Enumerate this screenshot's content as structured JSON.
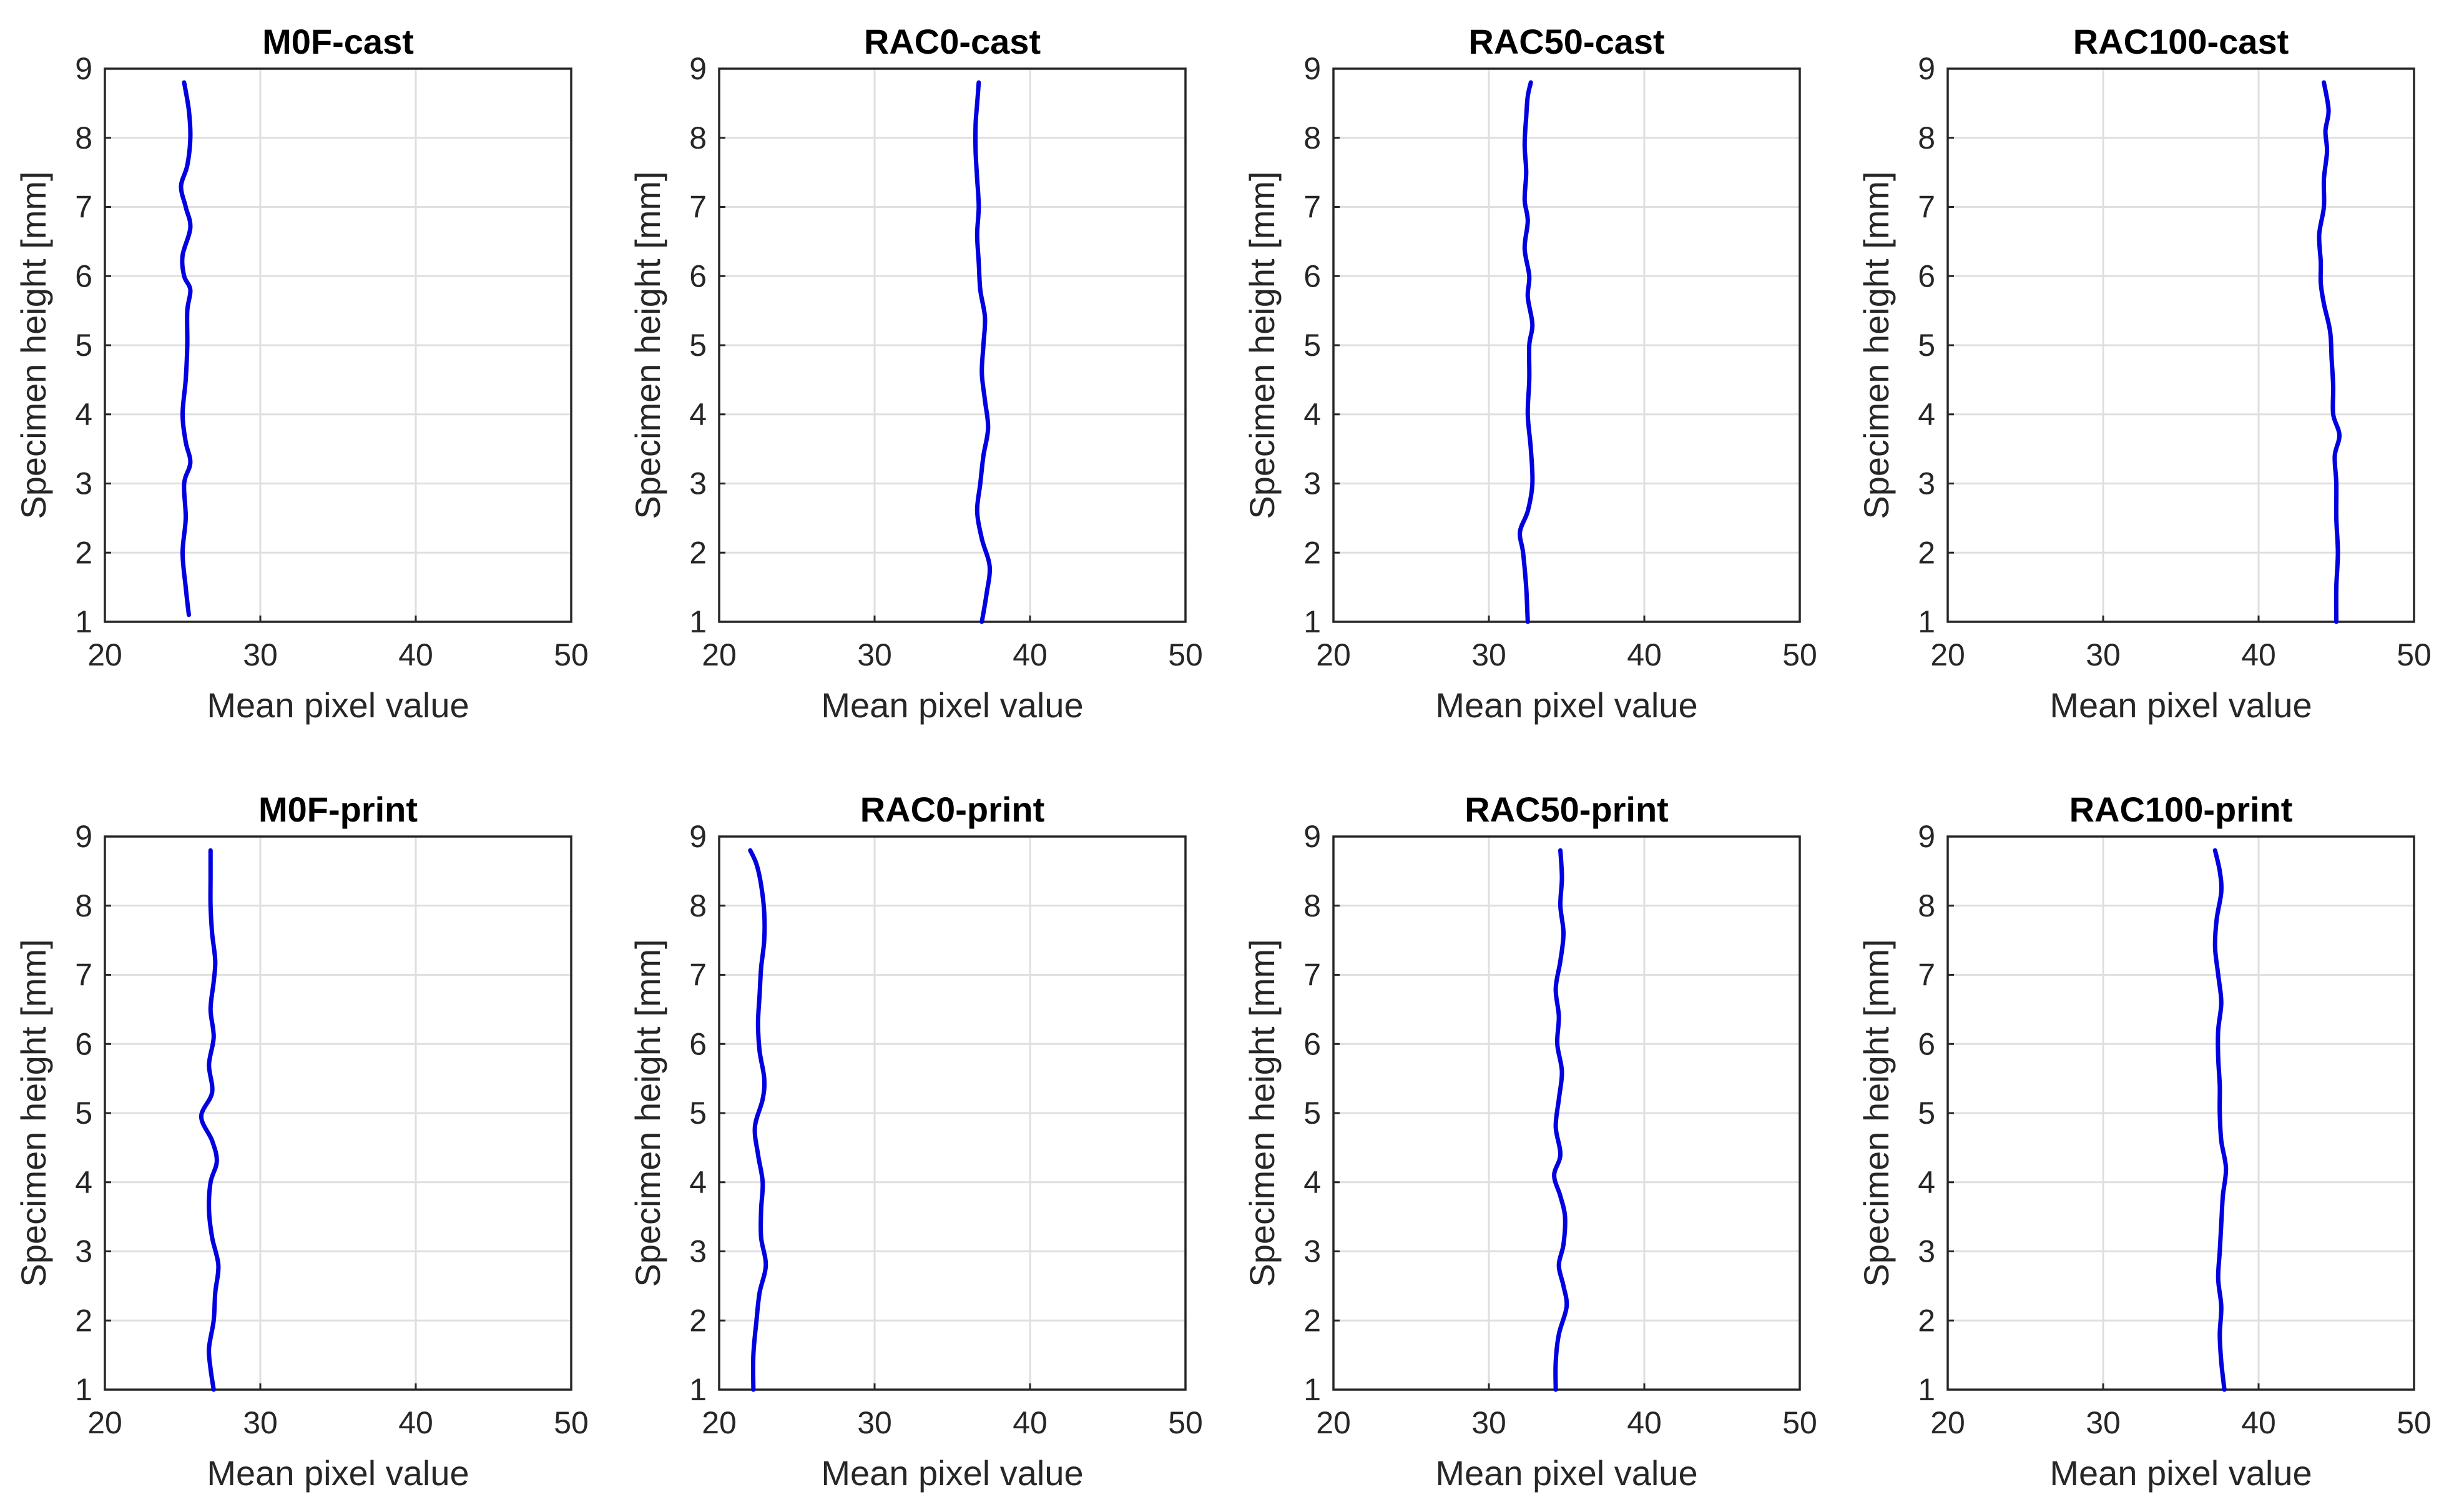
{
  "figure": {
    "background": "#ffffff",
    "line_color": "#0000e0"
  },
  "chart_data": [
    {
      "type": "line",
      "orientation": "vertical-profile",
      "title": "M0F-cast",
      "xlabel": "Mean pixel value",
      "ylabel": "Specimen height [mm]",
      "xlim": [
        20,
        50
      ],
      "ylim": [
        1,
        9
      ],
      "xticks": [
        "20",
        "30",
        "40",
        "50"
      ],
      "yticks": [
        "1",
        "2",
        "3",
        "4",
        "5",
        "6",
        "7",
        "8",
        "9"
      ],
      "grid": true,
      "series": [
        {
          "name": "M0F-cast",
          "y": [
            1.1,
            1.5,
            2.0,
            2.5,
            3.0,
            3.3,
            3.6,
            4.0,
            4.5,
            5.0,
            5.5,
            5.8,
            6.0,
            6.3,
            6.7,
            7.0,
            7.3,
            7.6,
            8.0,
            8.4,
            8.8
          ],
          "x": [
            25.4,
            25.2,
            25.0,
            25.2,
            25.1,
            25.5,
            25.2,
            25.0,
            25.2,
            25.3,
            25.3,
            25.5,
            25.1,
            25.0,
            25.5,
            25.2,
            24.9,
            25.3,
            25.5,
            25.4,
            25.1
          ]
        }
      ]
    },
    {
      "type": "line",
      "orientation": "vertical-profile",
      "title": "RAC0-cast",
      "xlabel": "Mean pixel value",
      "ylabel": "Specimen height [mm]",
      "xlim": [
        20,
        50
      ],
      "ylim": [
        1,
        9
      ],
      "xticks": [
        "20",
        "30",
        "40",
        "50"
      ],
      "yticks": [
        "1",
        "2",
        "3",
        "4",
        "5",
        "6",
        "7",
        "8",
        "9"
      ],
      "grid": true,
      "series": [
        {
          "name": "RAC0-cast",
          "y": [
            1.0,
            1.4,
            1.8,
            2.2,
            2.6,
            3.0,
            3.4,
            3.8,
            4.2,
            4.6,
            5.0,
            5.4,
            5.8,
            6.2,
            6.6,
            7.0,
            7.4,
            7.8,
            8.2,
            8.5,
            8.8
          ],
          "x": [
            36.9,
            37.2,
            37.4,
            36.9,
            36.6,
            36.8,
            37.0,
            37.3,
            37.1,
            36.9,
            37.0,
            37.1,
            36.8,
            36.7,
            36.6,
            36.7,
            36.6,
            36.5,
            36.5,
            36.6,
            36.7
          ]
        }
      ]
    },
    {
      "type": "line",
      "orientation": "vertical-profile",
      "title": "RAC50-cast",
      "xlabel": "Mean pixel value",
      "ylabel": "Specimen height [mm]",
      "xlim": [
        20,
        50
      ],
      "ylim": [
        1,
        9
      ],
      "xticks": [
        "20",
        "30",
        "40",
        "50"
      ],
      "yticks": [
        "1",
        "2",
        "3",
        "4",
        "5",
        "6",
        "7",
        "8",
        "9"
      ],
      "grid": true,
      "series": [
        {
          "name": "RAC50-cast",
          "y": [
            1.0,
            1.5,
            2.0,
            2.3,
            2.6,
            3.0,
            3.5,
            4.0,
            4.5,
            5.0,
            5.3,
            5.7,
            6.0,
            6.4,
            6.8,
            7.1,
            7.5,
            7.9,
            8.3,
            8.6,
            8.8
          ],
          "x": [
            32.5,
            32.4,
            32.2,
            32.0,
            32.5,
            32.8,
            32.7,
            32.5,
            32.6,
            32.6,
            32.8,
            32.5,
            32.6,
            32.3,
            32.5,
            32.3,
            32.4,
            32.3,
            32.4,
            32.5,
            32.7
          ]
        }
      ]
    },
    {
      "type": "line",
      "orientation": "vertical-profile",
      "title": "RAC100-cast",
      "xlabel": "Mean pixel value",
      "ylabel": "Specimen height [mm]",
      "xlim": [
        20,
        50
      ],
      "ylim": [
        1,
        9
      ],
      "xticks": [
        "20",
        "30",
        "40",
        "50"
      ],
      "yticks": [
        "1",
        "2",
        "3",
        "4",
        "5",
        "6",
        "7",
        "8",
        "9"
      ],
      "grid": true,
      "series": [
        {
          "name": "RAC100-cast",
          "y": [
            1.0,
            1.5,
            2.0,
            2.5,
            3.0,
            3.4,
            3.7,
            4.0,
            4.4,
            4.8,
            5.2,
            5.6,
            5.9,
            6.2,
            6.6,
            7.0,
            7.4,
            7.8,
            8.1,
            8.4,
            8.8
          ],
          "x": [
            45.0,
            45.0,
            45.1,
            45.0,
            45.0,
            44.9,
            45.2,
            44.8,
            44.8,
            44.7,
            44.6,
            44.2,
            44.0,
            44.0,
            43.9,
            44.2,
            44.2,
            44.4,
            44.3,
            44.5,
            44.2
          ]
        }
      ]
    },
    {
      "type": "line",
      "orientation": "vertical-profile",
      "title": "M0F-print",
      "xlabel": "Mean pixel value",
      "ylabel": "Specimen height [mm]",
      "xlim": [
        20,
        50
      ],
      "ylim": [
        1,
        9
      ],
      "xticks": [
        "20",
        "30",
        "40",
        "50"
      ],
      "yticks": [
        "1",
        "2",
        "3",
        "4",
        "5",
        "6",
        "7",
        "8",
        "9"
      ],
      "grid": true,
      "series": [
        {
          "name": "M0F-print",
          "y": [
            1.0,
            1.3,
            1.6,
            2.0,
            2.4,
            2.8,
            3.2,
            3.6,
            4.0,
            4.3,
            4.6,
            4.95,
            5.3,
            5.7,
            6.1,
            6.5,
            6.9,
            7.2,
            7.6,
            8.0,
            8.4,
            8.8
          ],
          "x": [
            27.0,
            26.8,
            26.7,
            27.0,
            27.1,
            27.3,
            26.9,
            26.7,
            26.8,
            27.2,
            26.9,
            26.2,
            26.9,
            26.7,
            27.0,
            26.8,
            27.0,
            27.1,
            26.9,
            26.8,
            26.8,
            26.8
          ]
        }
      ]
    },
    {
      "type": "line",
      "orientation": "vertical-profile",
      "title": "RAC0-print",
      "xlabel": "Mean pixel value",
      "ylabel": "Specimen height [mm]",
      "xlim": [
        20,
        50
      ],
      "ylim": [
        1,
        9
      ],
      "xticks": [
        "20",
        "30",
        "40",
        "50"
      ],
      "yticks": [
        "1",
        "2",
        "3",
        "4",
        "5",
        "6",
        "7",
        "8",
        "9"
      ],
      "grid": true,
      "series": [
        {
          "name": "RAC0-print",
          "y": [
            1.0,
            1.5,
            2.0,
            2.4,
            2.8,
            3.2,
            3.6,
            4.0,
            4.4,
            4.8,
            5.2,
            5.5,
            5.9,
            6.3,
            6.7,
            7.1,
            7.5,
            7.9,
            8.3,
            8.6,
            8.8
          ],
          "x": [
            22.2,
            22.2,
            22.4,
            22.6,
            23.0,
            22.7,
            22.7,
            22.8,
            22.5,
            22.3,
            22.8,
            22.9,
            22.6,
            22.5,
            22.6,
            22.7,
            22.9,
            22.9,
            22.7,
            22.4,
            22.0
          ]
        }
      ]
    },
    {
      "type": "line",
      "orientation": "vertical-profile",
      "title": "RAC50-print",
      "xlabel": "Mean pixel value",
      "ylabel": "Specimen height [mm]",
      "xlim": [
        20,
        50
      ],
      "ylim": [
        1,
        9
      ],
      "xticks": [
        "20",
        "30",
        "40",
        "50"
      ],
      "yticks": [
        "1",
        "2",
        "3",
        "4",
        "5",
        "6",
        "7",
        "8",
        "9"
      ],
      "grid": true,
      "series": [
        {
          "name": "RAC50-print",
          "y": [
            1.0,
            1.4,
            1.8,
            2.2,
            2.5,
            2.8,
            3.1,
            3.5,
            3.8,
            4.1,
            4.4,
            4.8,
            5.2,
            5.6,
            6.0,
            6.4,
            6.8,
            7.2,
            7.6,
            8.0,
            8.4,
            8.8
          ],
          "x": [
            34.3,
            34.3,
            34.5,
            35.0,
            34.8,
            34.5,
            34.8,
            34.9,
            34.6,
            34.2,
            34.6,
            34.3,
            34.5,
            34.7,
            34.4,
            34.5,
            34.3,
            34.6,
            34.8,
            34.6,
            34.7,
            34.6
          ]
        }
      ]
    },
    {
      "type": "line",
      "orientation": "vertical-profile",
      "title": "RAC100-print",
      "xlabel": "Mean pixel value",
      "ylabel": "Specimen height [mm]",
      "xlim": [
        20,
        50
      ],
      "ylim": [
        1,
        9
      ],
      "xticks": [
        "20",
        "30",
        "40",
        "50"
      ],
      "yticks": [
        "1",
        "2",
        "3",
        "4",
        "5",
        "6",
        "7",
        "8",
        "9"
      ],
      "grid": true,
      "series": [
        {
          "name": "RAC100-print",
          "y": [
            1.0,
            1.4,
            1.8,
            2.2,
            2.6,
            3.0,
            3.4,
            3.8,
            4.2,
            4.6,
            5.0,
            5.4,
            5.8,
            6.2,
            6.6,
            7.0,
            7.4,
            7.8,
            8.2,
            8.5,
            8.8
          ],
          "x": [
            37.8,
            37.6,
            37.5,
            37.6,
            37.4,
            37.5,
            37.6,
            37.7,
            37.9,
            37.6,
            37.5,
            37.5,
            37.4,
            37.4,
            37.6,
            37.4,
            37.2,
            37.3,
            37.6,
            37.5,
            37.2
          ]
        }
      ]
    }
  ]
}
